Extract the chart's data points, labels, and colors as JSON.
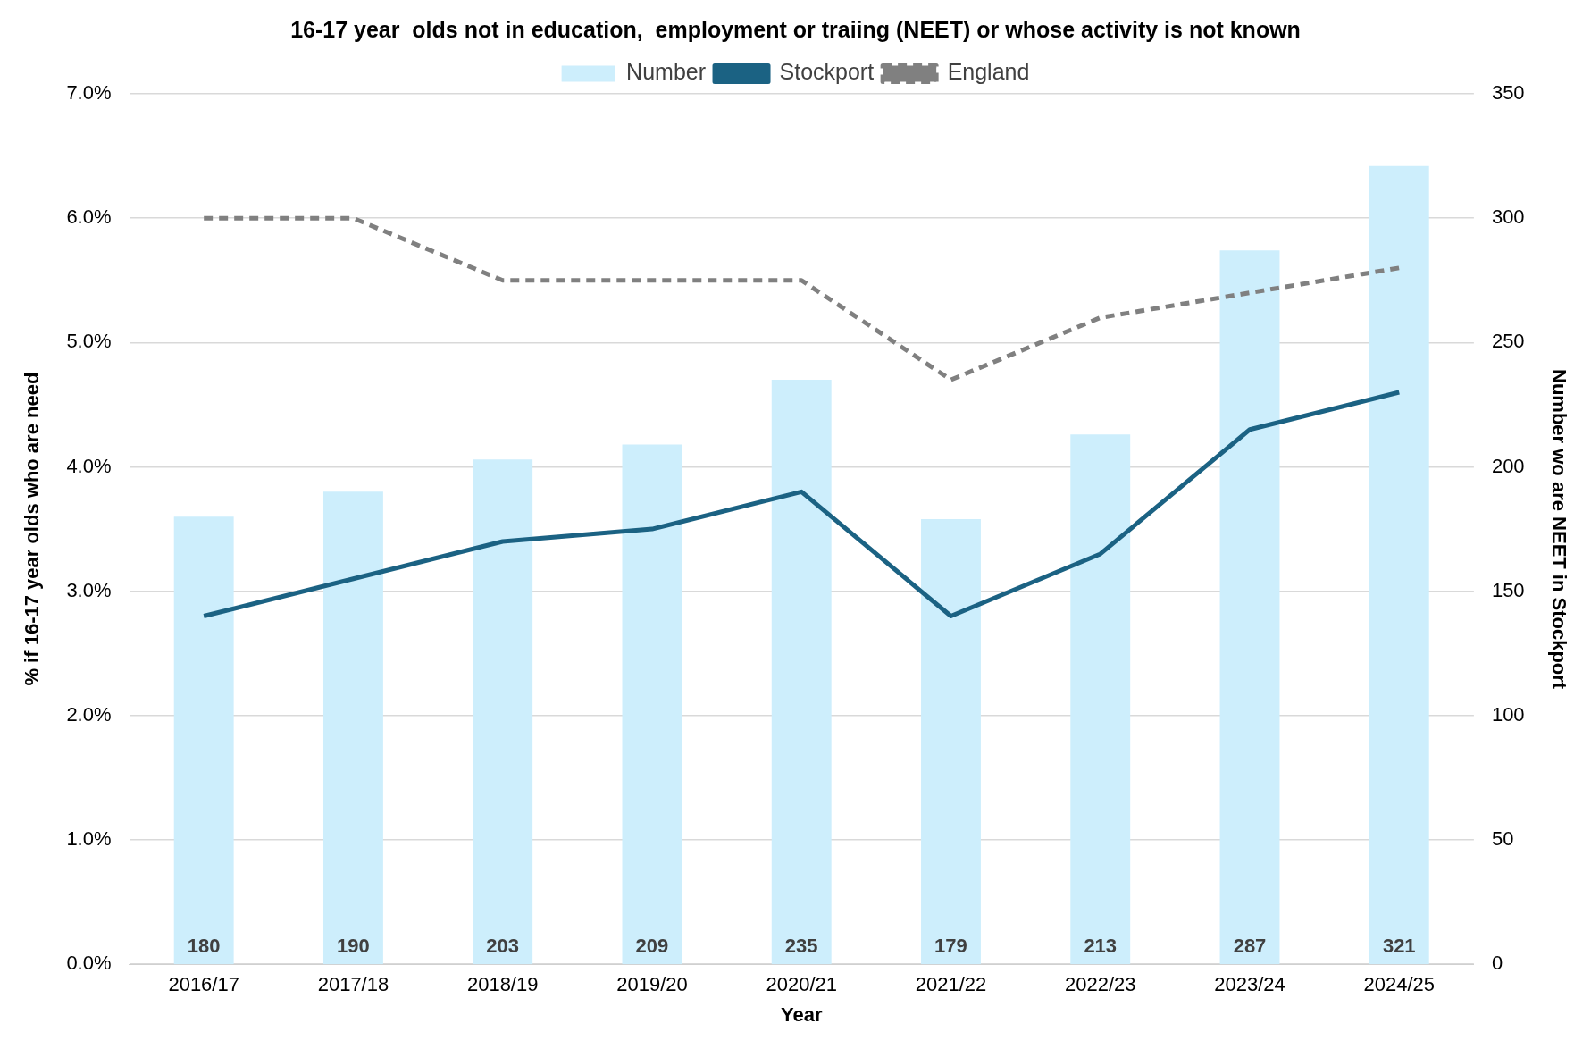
{
  "chart_data": {
    "type": "bar",
    "title": "16-17 year  olds not in education,  employment or traiing (NEET) or whose activity is not known",
    "xlabel": "Year",
    "ylabel": "% if 16-17 year olds who are need",
    "y2label": "Number wo are NEET in Stockport",
    "categories": [
      "2016/17",
      "2017/18",
      "2018/19",
      "2019/20",
      "2020/21",
      "2021/22",
      "2022/23",
      "2023/24",
      "2024/25"
    ],
    "series": [
      {
        "name": "Number",
        "axis": "y2",
        "color": "#cdeefc",
        "values": [
          180,
          190,
          203,
          209,
          235,
          179,
          213,
          287,
          321
        ],
        "value_labels": [
          "180",
          "190",
          "203",
          "209",
          "235",
          "179",
          "213",
          "287",
          "321"
        ]
      },
      {
        "name": "Stockport",
        "type": "line",
        "color": "#1b6283",
        "line_style": "solid",
        "values": [
          2.8,
          3.1,
          3.4,
          3.5,
          3.8,
          2.8,
          3.3,
          4.3,
          4.6
        ]
      },
      {
        "name": "England",
        "type": "line",
        "color": "#808080",
        "line_style": "dashed",
        "values": [
          6.0,
          6.0,
          5.5,
          5.5,
          5.5,
          4.7,
          5.2,
          5.4,
          5.6
        ]
      }
    ],
    "ylim": [
      0,
      7
    ],
    "yticks": [
      {
        "value": 0,
        "label": "0.0%"
      },
      {
        "value": 1,
        "label": "1.0%"
      },
      {
        "value": 2,
        "label": "2.0%"
      },
      {
        "value": 3,
        "label": "3.0%"
      },
      {
        "value": 4,
        "label": "4.0%"
      },
      {
        "value": 5,
        "label": "5.0%"
      },
      {
        "value": 6,
        "label": "6.0%"
      },
      {
        "value": 7,
        "label": "7.0%"
      }
    ],
    "y2lim": [
      0,
      350
    ],
    "y2ticks": [
      0,
      50,
      100,
      150,
      200,
      250,
      300,
      350
    ],
    "grid": "y",
    "legend": "top",
    "marker": "none"
  }
}
